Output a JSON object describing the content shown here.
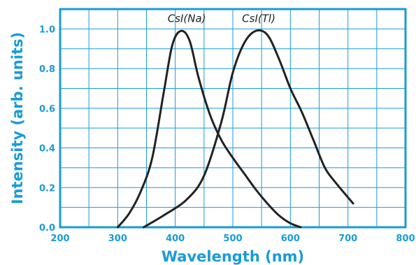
{
  "chart_data": {
    "type": "line",
    "xlabel": "Wavelength (nm)",
    "ylabel": "Intensity (arb. units)",
    "xlim": [
      200,
      800
    ],
    "ylim": [
      0,
      1.1
    ],
    "x_ticks": [
      200,
      300,
      400,
      500,
      600,
      700,
      800
    ],
    "x_tick_labels": [
      "200",
      "300",
      "400",
      "500",
      "600",
      "700",
      "800"
    ],
    "y_ticks": [
      0,
      0.2,
      0.4,
      0.6,
      0.8,
      1.0
    ],
    "y_tick_labels": [
      "0.0",
      "0.2",
      "0.4",
      "0.6",
      "0.8",
      "1.0"
    ],
    "grid": true,
    "legend": "none",
    "colors": {
      "axes": "#1a9bd7",
      "grid": "#1a9bd7",
      "line": "#222222",
      "label": "#222222"
    },
    "series": [
      {
        "name": "CsI(Na)",
        "x": [
          300,
          320,
          340,
          360,
          380,
          395,
          410,
          425,
          440,
          460,
          480,
          500,
          520,
          540,
          560,
          580,
          600,
          618
        ],
        "y": [
          0.0,
          0.07,
          0.18,
          0.35,
          0.68,
          0.92,
          0.99,
          0.94,
          0.76,
          0.57,
          0.44,
          0.35,
          0.27,
          0.19,
          0.12,
          0.06,
          0.02,
          0.0
        ]
      },
      {
        "name": "CsI(Tl)",
        "x": [
          345,
          380,
          420,
          450,
          480,
          500,
          520,
          540,
          560,
          580,
          600,
          620,
          640,
          660,
          680,
          709
        ],
        "y": [
          0.0,
          0.06,
          0.14,
          0.26,
          0.53,
          0.78,
          0.93,
          0.99,
          0.97,
          0.85,
          0.7,
          0.58,
          0.44,
          0.3,
          0.22,
          0.12
        ]
      }
    ],
    "series_labels": [
      {
        "text": "CsI(Na)",
        "x": 420,
        "y": 1.035
      },
      {
        "text": "CsI(Tl)",
        "x": 545,
        "y": 1.035
      }
    ]
  }
}
